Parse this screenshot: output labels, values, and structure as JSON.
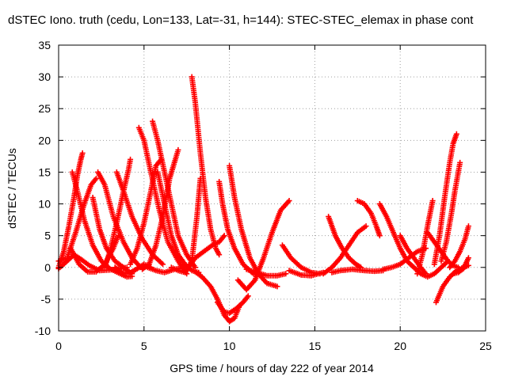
{
  "chart_data": {
    "type": "scatter",
    "title": "dSTEC Iono. truth (cedu, Lon=133, Lat=-31, h=144): STEC-STEC_elemax in phase cont",
    "xlabel": "GPS time / hours of day 222 of year 2014",
    "ylabel": "dSTEC  / TECUs",
    "xlim": [
      0,
      25
    ],
    "ylim": [
      -10,
      35
    ],
    "xticks": [
      0,
      5,
      10,
      15,
      20,
      25
    ],
    "yticks": [
      -10,
      -5,
      0,
      5,
      10,
      15,
      20,
      25,
      30,
      35
    ],
    "grid": true,
    "marker": "+",
    "marker_color": "#ff0000",
    "series": [
      {
        "x": [
          0.0,
          0.5,
          0.9,
          1.3,
          1.8,
          2.4,
          3.0,
          3.6,
          4.0
        ],
        "y": [
          -0.2,
          1.0,
          2.0,
          1.3,
          0.3,
          -0.5,
          -0.4,
          -0.2,
          0.0
        ]
      },
      {
        "x": [
          0.0,
          0.3,
          0.6,
          0.9,
          1.1,
          1.3,
          1.4
        ],
        "y": [
          0.0,
          2.5,
          6.5,
          11.0,
          14.5,
          17.0,
          18.0
        ]
      },
      {
        "x": [
          0.8,
          1.1,
          1.5,
          2.0,
          2.5,
          3.0,
          3.6,
          4.0,
          4.3
        ],
        "y": [
          15.0,
          12.0,
          7.5,
          3.5,
          1.0,
          -0.2,
          -1.0,
          -1.5,
          -1.4
        ]
      },
      {
        "x": [
          0.0,
          0.5,
          1.0,
          1.5,
          1.9,
          2.2
        ],
        "y": [
          1.0,
          1.5,
          5.5,
          10.0,
          13.0,
          14.0
        ]
      },
      {
        "x": [
          0.7,
          1.2,
          1.7,
          2.2,
          2.7,
          3.2,
          3.5
        ],
        "y": [
          3.0,
          0.5,
          -0.7,
          -0.7,
          0.5,
          3.0,
          5.0
        ]
      },
      {
        "x": [
          2.0,
          2.4,
          2.8,
          3.3,
          3.8,
          4.3
        ],
        "y": [
          11.0,
          6.0,
          3.0,
          1.0,
          0.0,
          -1.0
        ]
      },
      {
        "x": [
          2.3,
          2.7,
          3.2,
          3.8,
          4.3,
          4.8
        ],
        "y": [
          15.0,
          13.0,
          8.0,
          4.0,
          1.5,
          0.0
        ]
      },
      {
        "x": [
          3.4,
          3.8,
          4.3,
          4.9,
          5.5,
          6.1
        ],
        "y": [
          15.0,
          12.0,
          8.0,
          4.5,
          2.0,
          0.5
        ]
      },
      {
        "x": [
          2.7,
          3.0,
          3.4,
          3.8,
          4.1,
          4.2
        ],
        "y": [
          0.0,
          2.5,
          7.0,
          12.0,
          15.5,
          17.0
        ]
      },
      {
        "x": [
          3.3,
          3.7,
          4.1,
          4.6,
          5.0,
          5.4
        ],
        "y": [
          0.0,
          -0.8,
          -1.0,
          -0.2,
          0.5,
          0.0
        ]
      },
      {
        "x": [
          4.7,
          5.0,
          5.4,
          5.9,
          6.4,
          7.0,
          7.5
        ],
        "y": [
          22.0,
          20.0,
          15.0,
          9.0,
          4.0,
          1.0,
          -1.0
        ]
      },
      {
        "x": [
          5.5,
          5.8,
          6.2,
          6.6,
          7.0,
          7.5,
          8.0
        ],
        "y": [
          23.0,
          20.0,
          15.0,
          10.0,
          5.0,
          2.0,
          0.0
        ]
      },
      {
        "x": [
          4.2,
          4.6,
          5.0,
          5.4,
          5.7,
          6.0
        ],
        "y": [
          0.5,
          3.0,
          7.0,
          12.0,
          16.0,
          17.0
        ]
      },
      {
        "x": [
          4.9,
          5.3,
          5.7,
          6.1,
          6.5,
          7.0
        ],
        "y": [
          -0.3,
          0.5,
          3.5,
          8.0,
          14.0,
          18.5
        ]
      },
      {
        "x": [
          5.8,
          6.2,
          6.6,
          7.0,
          7.4,
          7.8,
          8.2
        ],
        "y": [
          15.0,
          10.0,
          5.0,
          2.0,
          0.5,
          -0.5,
          -0.8
        ]
      },
      {
        "x": [
          5.2,
          5.7,
          6.2,
          6.8,
          7.3,
          7.7
        ],
        "y": [
          0.0,
          -0.5,
          -0.8,
          -0.3,
          0.0,
          0.2
        ]
      },
      {
        "x": [
          6.6,
          7.0,
          7.4,
          7.8,
          8.1,
          8.3
        ],
        "y": [
          0.0,
          -0.5,
          -0.8,
          1.0,
          8.0,
          14.0
        ]
      },
      {
        "x": [
          7.8,
          8.0,
          8.3,
          8.6,
          8.9,
          9.2,
          9.4
        ],
        "y": [
          30.0,
          26.0,
          18.0,
          11.0,
          6.0,
          3.0,
          2.0
        ]
      },
      {
        "x": [
          7.6,
          8.0,
          8.5,
          9.0,
          9.4,
          9.7
        ],
        "y": [
          0.0,
          1.5,
          2.5,
          3.5,
          4.0,
          5.0
        ]
      },
      {
        "x": [
          7.9,
          8.4,
          8.9,
          9.3,
          9.7,
          10.0,
          10.3,
          10.6
        ],
        "y": [
          -0.5,
          -1.5,
          -3.0,
          -5.0,
          -7.5,
          -8.5,
          -8.0,
          -6.0
        ]
      },
      {
        "x": [
          9.4,
          9.6,
          9.9,
          10.3,
          10.8,
          11.4,
          12.0
        ],
        "y": [
          13.5,
          10.0,
          6.0,
          3.0,
          0.5,
          -1.0,
          -1.3
        ]
      },
      {
        "x": [
          10.0,
          10.3,
          10.7,
          11.2,
          11.7,
          12.2,
          12.8
        ],
        "y": [
          16.0,
          11.0,
          6.0,
          1.5,
          -1.0,
          -2.5,
          -3.0
        ]
      },
      {
        "x": [
          9.3,
          9.7,
          10.0,
          10.4,
          10.8,
          11.1
        ],
        "y": [
          -5.5,
          -7.0,
          -7.2,
          -6.5,
          -5.5,
          -4.5
        ]
      },
      {
        "x": [
          10.5,
          11.0,
          11.5,
          12.0,
          12.5,
          13.0,
          13.5
        ],
        "y": [
          -2.0,
          -3.5,
          -2.0,
          1.5,
          5.5,
          9.0,
          10.5
        ]
      },
      {
        "x": [
          11.0,
          11.6,
          12.2,
          12.8,
          13.3
        ],
        "y": [
          -0.3,
          -0.8,
          -1.3,
          -1.3,
          -1.0
        ]
      },
      {
        "x": [
          13.1,
          13.6,
          14.2,
          14.8,
          15.3
        ],
        "y": [
          3.5,
          1.5,
          0.0,
          -0.8,
          -1.0
        ]
      },
      {
        "x": [
          13.5,
          14.2,
          14.8,
          15.2,
          15.5
        ],
        "y": [
          -0.5,
          -1.2,
          -1.3,
          -1.0,
          -0.8
        ]
      },
      {
        "x": [
          15.5,
          16.0,
          16.5,
          17.0,
          17.5,
          18.0
        ],
        "y": [
          -1.0,
          0.0,
          1.5,
          3.5,
          5.5,
          6.5
        ]
      },
      {
        "x": [
          15.8,
          16.2,
          16.6,
          17.0,
          17.4,
          17.7
        ],
        "y": [
          8.0,
          5.0,
          3.0,
          1.5,
          0.5,
          0.0
        ]
      },
      {
        "x": [
          16.0,
          16.5,
          17.2,
          17.9,
          18.5,
          19.0
        ],
        "y": [
          -0.8,
          -0.5,
          -0.3,
          -0.5,
          -0.6,
          -0.5
        ]
      },
      {
        "x": [
          17.5,
          17.9,
          18.3,
          18.6,
          18.8
        ],
        "y": [
          10.5,
          10.0,
          8.5,
          6.5,
          5.0
        ]
      },
      {
        "x": [
          18.8,
          19.2,
          19.6,
          20.0,
          20.4,
          20.8
        ],
        "y": [
          10.0,
          8.0,
          5.5,
          3.0,
          1.0,
          0.0
        ]
      },
      {
        "x": [
          19.0,
          19.5,
          20.0,
          20.5,
          21.0,
          21.5
        ],
        "y": [
          -0.3,
          0.0,
          0.5,
          1.5,
          2.5,
          3.0
        ]
      },
      {
        "x": [
          20.0,
          20.4,
          20.8,
          21.2,
          21.5
        ],
        "y": [
          5.0,
          3.0,
          1.5,
          0.0,
          -1.0
        ]
      },
      {
        "x": [
          20.8,
          21.2,
          21.6,
          22.0,
          22.4,
          22.8
        ],
        "y": [
          0.0,
          -1.0,
          -1.5,
          -1.0,
          0.0,
          1.0
        ]
      },
      {
        "x": [
          21.6,
          22.0,
          22.4,
          22.8,
          23.1,
          23.4
        ],
        "y": [
          5.5,
          4.0,
          2.5,
          1.0,
          0.3,
          0.0
        ]
      },
      {
        "x": [
          21.0,
          21.3,
          21.6,
          21.9
        ],
        "y": [
          -1.0,
          2.0,
          6.5,
          10.5
        ]
      },
      {
        "x": [
          22.0,
          22.3,
          22.6,
          22.9,
          23.1,
          23.3
        ],
        "y": [
          0.5,
          5.0,
          11.0,
          16.5,
          19.5,
          21.0
        ]
      },
      {
        "x": [
          22.4,
          22.7,
          23.0,
          23.2,
          23.4,
          23.5
        ],
        "y": [
          1.0,
          4.0,
          8.5,
          12.0,
          15.0,
          16.5
        ]
      },
      {
        "x": [
          22.1,
          22.5,
          22.9,
          23.3,
          23.7,
          24.0
        ],
        "y": [
          -5.5,
          -3.0,
          -1.5,
          -0.5,
          0.0,
          0.3
        ]
      },
      {
        "x": [
          22.9,
          23.2,
          23.5,
          23.8,
          24.0
        ],
        "y": [
          0.0,
          1.0,
          2.5,
          4.5,
          6.5
        ]
      },
      {
        "x": [
          23.1,
          23.4,
          23.7,
          24.0
        ],
        "y": [
          -1.0,
          -0.8,
          -0.2,
          1.5
        ]
      }
    ]
  }
}
